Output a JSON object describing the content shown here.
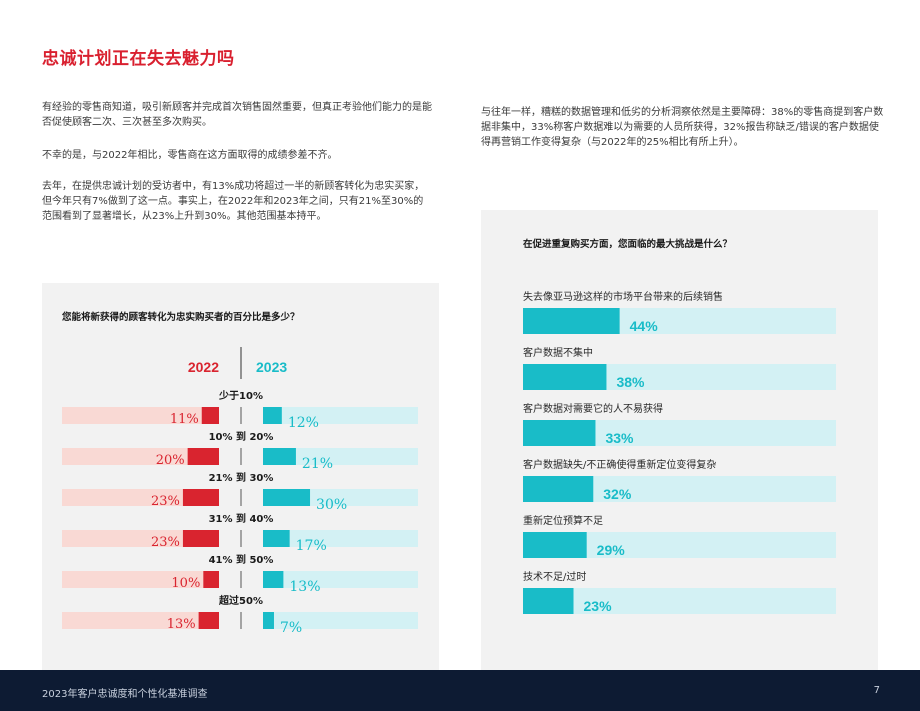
{
  "page": {
    "title": "忠诚计划正在失去魅力吗",
    "paragraphs": {
      "p1": "有经验的零售商知道，吸引新顾客并完成首次销售固然重要，但真正考验他们能力的是能否促使顾客二次、三次甚至多次购买。",
      "p2": "不幸的是，与2022年相比，零售商在这方面取得的成绩参差不齐。",
      "p3": "去年，在提供忠诚计划的受访者中，有13%成功将超过一半的新顾客转化为忠实买家，但今年只有7%做到了这一点。事实上，在2022年和2023年之间，只有21%至30%的范围看到了显著增长，从23%上升到30%。其他范围基本持平。",
      "p4": "与往年一样，糟糕的数据管理和低劣的分析洞察依然是主要障碍：38%的零售商提到客户数据非集中，33%称客户数据难以为需要的人员所获得，32%报告称缺乏/错误的客户数据使得再营销工作变得复杂（与2022年的25%相比有所上升）。"
    },
    "footer": {
      "text": "2023年客户忠诚度和个性化基准调查",
      "page_number": "7"
    }
  },
  "chart_data": [
    {
      "type": "bar",
      "question": "您能将新获得的顾客转化为忠实购买者的百分比是多少？",
      "categories": [
        "少于10%",
        "10% 到 20%",
        "21% 到 30%",
        "31% 到 40%",
        "41% 到 50%",
        "超过50%"
      ],
      "series": [
        {
          "name": "2022",
          "values": [
            11,
            20,
            23,
            23,
            10,
            13
          ],
          "color": "#d9242f",
          "track_color": "#f9d9d4"
        },
        {
          "name": "2023",
          "values": [
            12,
            21,
            30,
            17,
            13,
            7
          ],
          "color": "#19bcc8",
          "track_color": "#d3f1f4"
        }
      ],
      "value_suffix": "%",
      "xlim": [
        0,
        50
      ]
    },
    {
      "type": "bar",
      "question": "在促进重复购买方面，您面临的最大挑战是什么？",
      "categories": [
        "失去像亚马逊这样的市场平台带来的后续销售",
        "客户数据不集中",
        "客户数据对需要它的人不易获得",
        "客户数据缺失/不正确使得重新定位变得复杂",
        "重新定位预算不足",
        "技术不足/过时"
      ],
      "values": [
        44,
        38,
        33,
        32,
        29,
        23
      ],
      "value_suffix": "%",
      "color": "#19bcc8",
      "track_color": "#d3f1f4",
      "xlim": [
        0,
        100
      ]
    }
  ]
}
